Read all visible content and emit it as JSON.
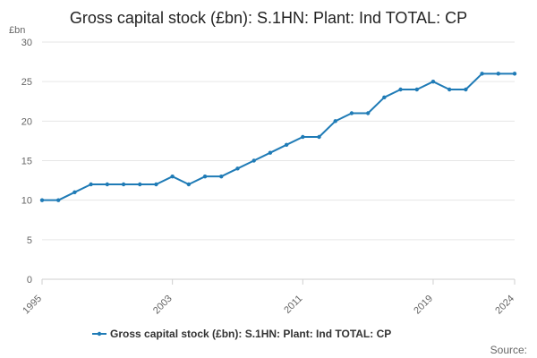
{
  "chart_data": {
    "type": "line",
    "title": "Gross capital stock (£bn): S.1HN: Plant: Ind TOTAL: CP",
    "ylabel": "£bn",
    "xlabel": "",
    "x": [
      1995,
      1996,
      1997,
      1998,
      1999,
      2000,
      2001,
      2002,
      2003,
      2004,
      2005,
      2006,
      2007,
      2008,
      2009,
      2010,
      2011,
      2012,
      2013,
      2014,
      2015,
      2016,
      2017,
      2018,
      2019,
      2020,
      2021,
      2022,
      2023,
      2024
    ],
    "series": [
      {
        "name": "Gross capital stock (£bn): S.1HN: Plant: Ind TOTAL: CP",
        "values": [
          10,
          10,
          11,
          12,
          12,
          12,
          12,
          12,
          13,
          12,
          13,
          13,
          14,
          15,
          16,
          17,
          18,
          18,
          20,
          21,
          21,
          23,
          24,
          24,
          25,
          24,
          24,
          26,
          26,
          26
        ],
        "color": "#1f7bb6"
      }
    ],
    "xlim": [
      1995,
      2024
    ],
    "ylim": [
      0,
      30
    ],
    "x_ticks": [
      "1995",
      "2003",
      "2011",
      "2019",
      "2024"
    ],
    "y_ticks": [
      "0",
      "5",
      "10",
      "15",
      "20",
      "25",
      "30"
    ],
    "grid": true,
    "legend_position": "bottom",
    "source_label": "Source:",
    "colors": {
      "grid": "#e6e6e6",
      "axis": "#cfcfcf",
      "line": "#1f7bb6"
    }
  }
}
